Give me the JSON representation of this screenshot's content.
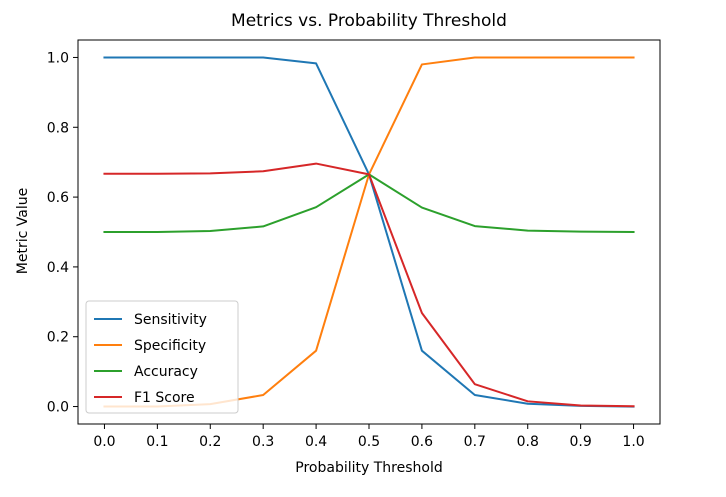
{
  "chart_data": {
    "type": "line",
    "title": "Metrics vs. Probability Threshold",
    "xlabel": "Probability Threshold",
    "ylabel": "Metric Value",
    "x": [
      0.0,
      0.1,
      0.2,
      0.3,
      0.4,
      0.5,
      0.6,
      0.7,
      0.8,
      0.9,
      1.0
    ],
    "xticks": [
      "0.0",
      "0.1",
      "0.2",
      "0.3",
      "0.4",
      "0.5",
      "0.6",
      "0.7",
      "0.8",
      "0.9",
      "1.0"
    ],
    "yticks": [
      "0.0",
      "0.2",
      "0.4",
      "0.6",
      "0.8",
      "1.0"
    ],
    "xlim": [
      -0.05,
      1.05
    ],
    "ylim": [
      -0.05,
      1.05
    ],
    "grid": false,
    "legend_position": "lower-left",
    "series": [
      {
        "name": "Sensitivity",
        "color": "#1f77b4",
        "values": [
          1.0,
          1.0,
          1.0,
          1.0,
          0.983,
          0.665,
          0.16,
          0.033,
          0.008,
          0.002,
          0.0
        ]
      },
      {
        "name": "Specificity",
        "color": "#ff7f0e",
        "values": [
          0.0,
          0.0,
          0.007,
          0.033,
          0.16,
          0.665,
          0.98,
          1.0,
          1.0,
          1.0,
          1.0
        ]
      },
      {
        "name": "Accuracy",
        "color": "#2ca02c",
        "values": [
          0.5,
          0.5,
          0.503,
          0.516,
          0.571,
          0.665,
          0.57,
          0.517,
          0.504,
          0.501,
          0.5
        ]
      },
      {
        "name": "F1 Score",
        "color": "#d62728",
        "values": [
          0.667,
          0.667,
          0.668,
          0.674,
          0.696,
          0.665,
          0.268,
          0.064,
          0.015,
          0.003,
          0.001
        ]
      }
    ]
  }
}
